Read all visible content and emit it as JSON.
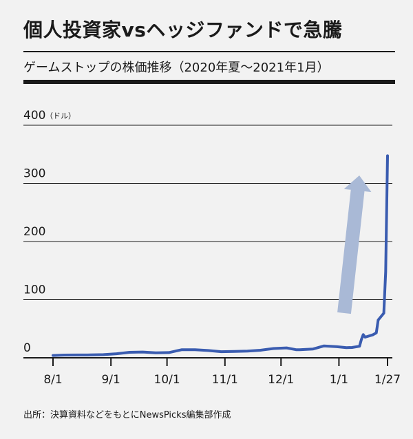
{
  "header": {
    "title": "個人投資家vsヘッジファンドで急騰",
    "subtitle": "ゲームストップの株価推移（2020年夏〜2021年1月）"
  },
  "footer": {
    "source": "出所：決算資料などをもとにNewsPicks編集部作成"
  },
  "colors": {
    "line": "#3a5cb0",
    "arrow": "#a9b9d6",
    "grid": "#1a1a1a",
    "background": "#f2f2f2"
  },
  "chart_data": {
    "type": "line",
    "title": "ゲームストップの株価推移（2020年夏〜2021年1月）",
    "ylabel_unit": "（ドル）",
    "ylim": [
      0,
      400
    ],
    "y_ticks": [
      0,
      100,
      200,
      300,
      400
    ],
    "x_ticks": [
      "8/1",
      "9/1",
      "10/1",
      "11/1",
      "12/1",
      "1/1",
      "1/27"
    ],
    "x_range": [
      "2020-08-01",
      "2021-01-27"
    ],
    "grid": "horizontal",
    "annotation": "upward-arrow",
    "series": [
      {
        "x": [
          "2020-08-01",
          "2020-08-07",
          "2020-08-14",
          "2020-08-21",
          "2020-08-28",
          "2020-09-04",
          "2020-09-11",
          "2020-09-18",
          "2020-09-25",
          "2020-10-02",
          "2020-10-09",
          "2020-10-16",
          "2020-10-23",
          "2020-10-30",
          "2020-11-06",
          "2020-11-13",
          "2020-11-20",
          "2020-11-27",
          "2020-12-04",
          "2020-12-09",
          "2020-12-11",
          "2020-12-18",
          "2020-12-24",
          "2020-12-31",
          "2021-01-05",
          "2021-01-08",
          "2021-01-12",
          "2021-01-13",
          "2021-01-14",
          "2021-01-15",
          "2021-01-19",
          "2021-01-21",
          "2021-01-22",
          "2021-01-25",
          "2021-01-26",
          "2021-01-27"
        ],
        "values": [
          4.0,
          4.7,
          4.8,
          5.0,
          5.5,
          7.0,
          9.5,
          10.0,
          8.5,
          9.0,
          14.0,
          14.0,
          12.5,
          10.5,
          11.0,
          11.5,
          13.0,
          16.0,
          17.0,
          14.0,
          14.0,
          15.0,
          20.5,
          19.0,
          17.5,
          17.7,
          19.9,
          31.4,
          39.9,
          35.5,
          39.4,
          43.0,
          65.0,
          76.8,
          147.9,
          347.5
        ]
      }
    ]
  }
}
